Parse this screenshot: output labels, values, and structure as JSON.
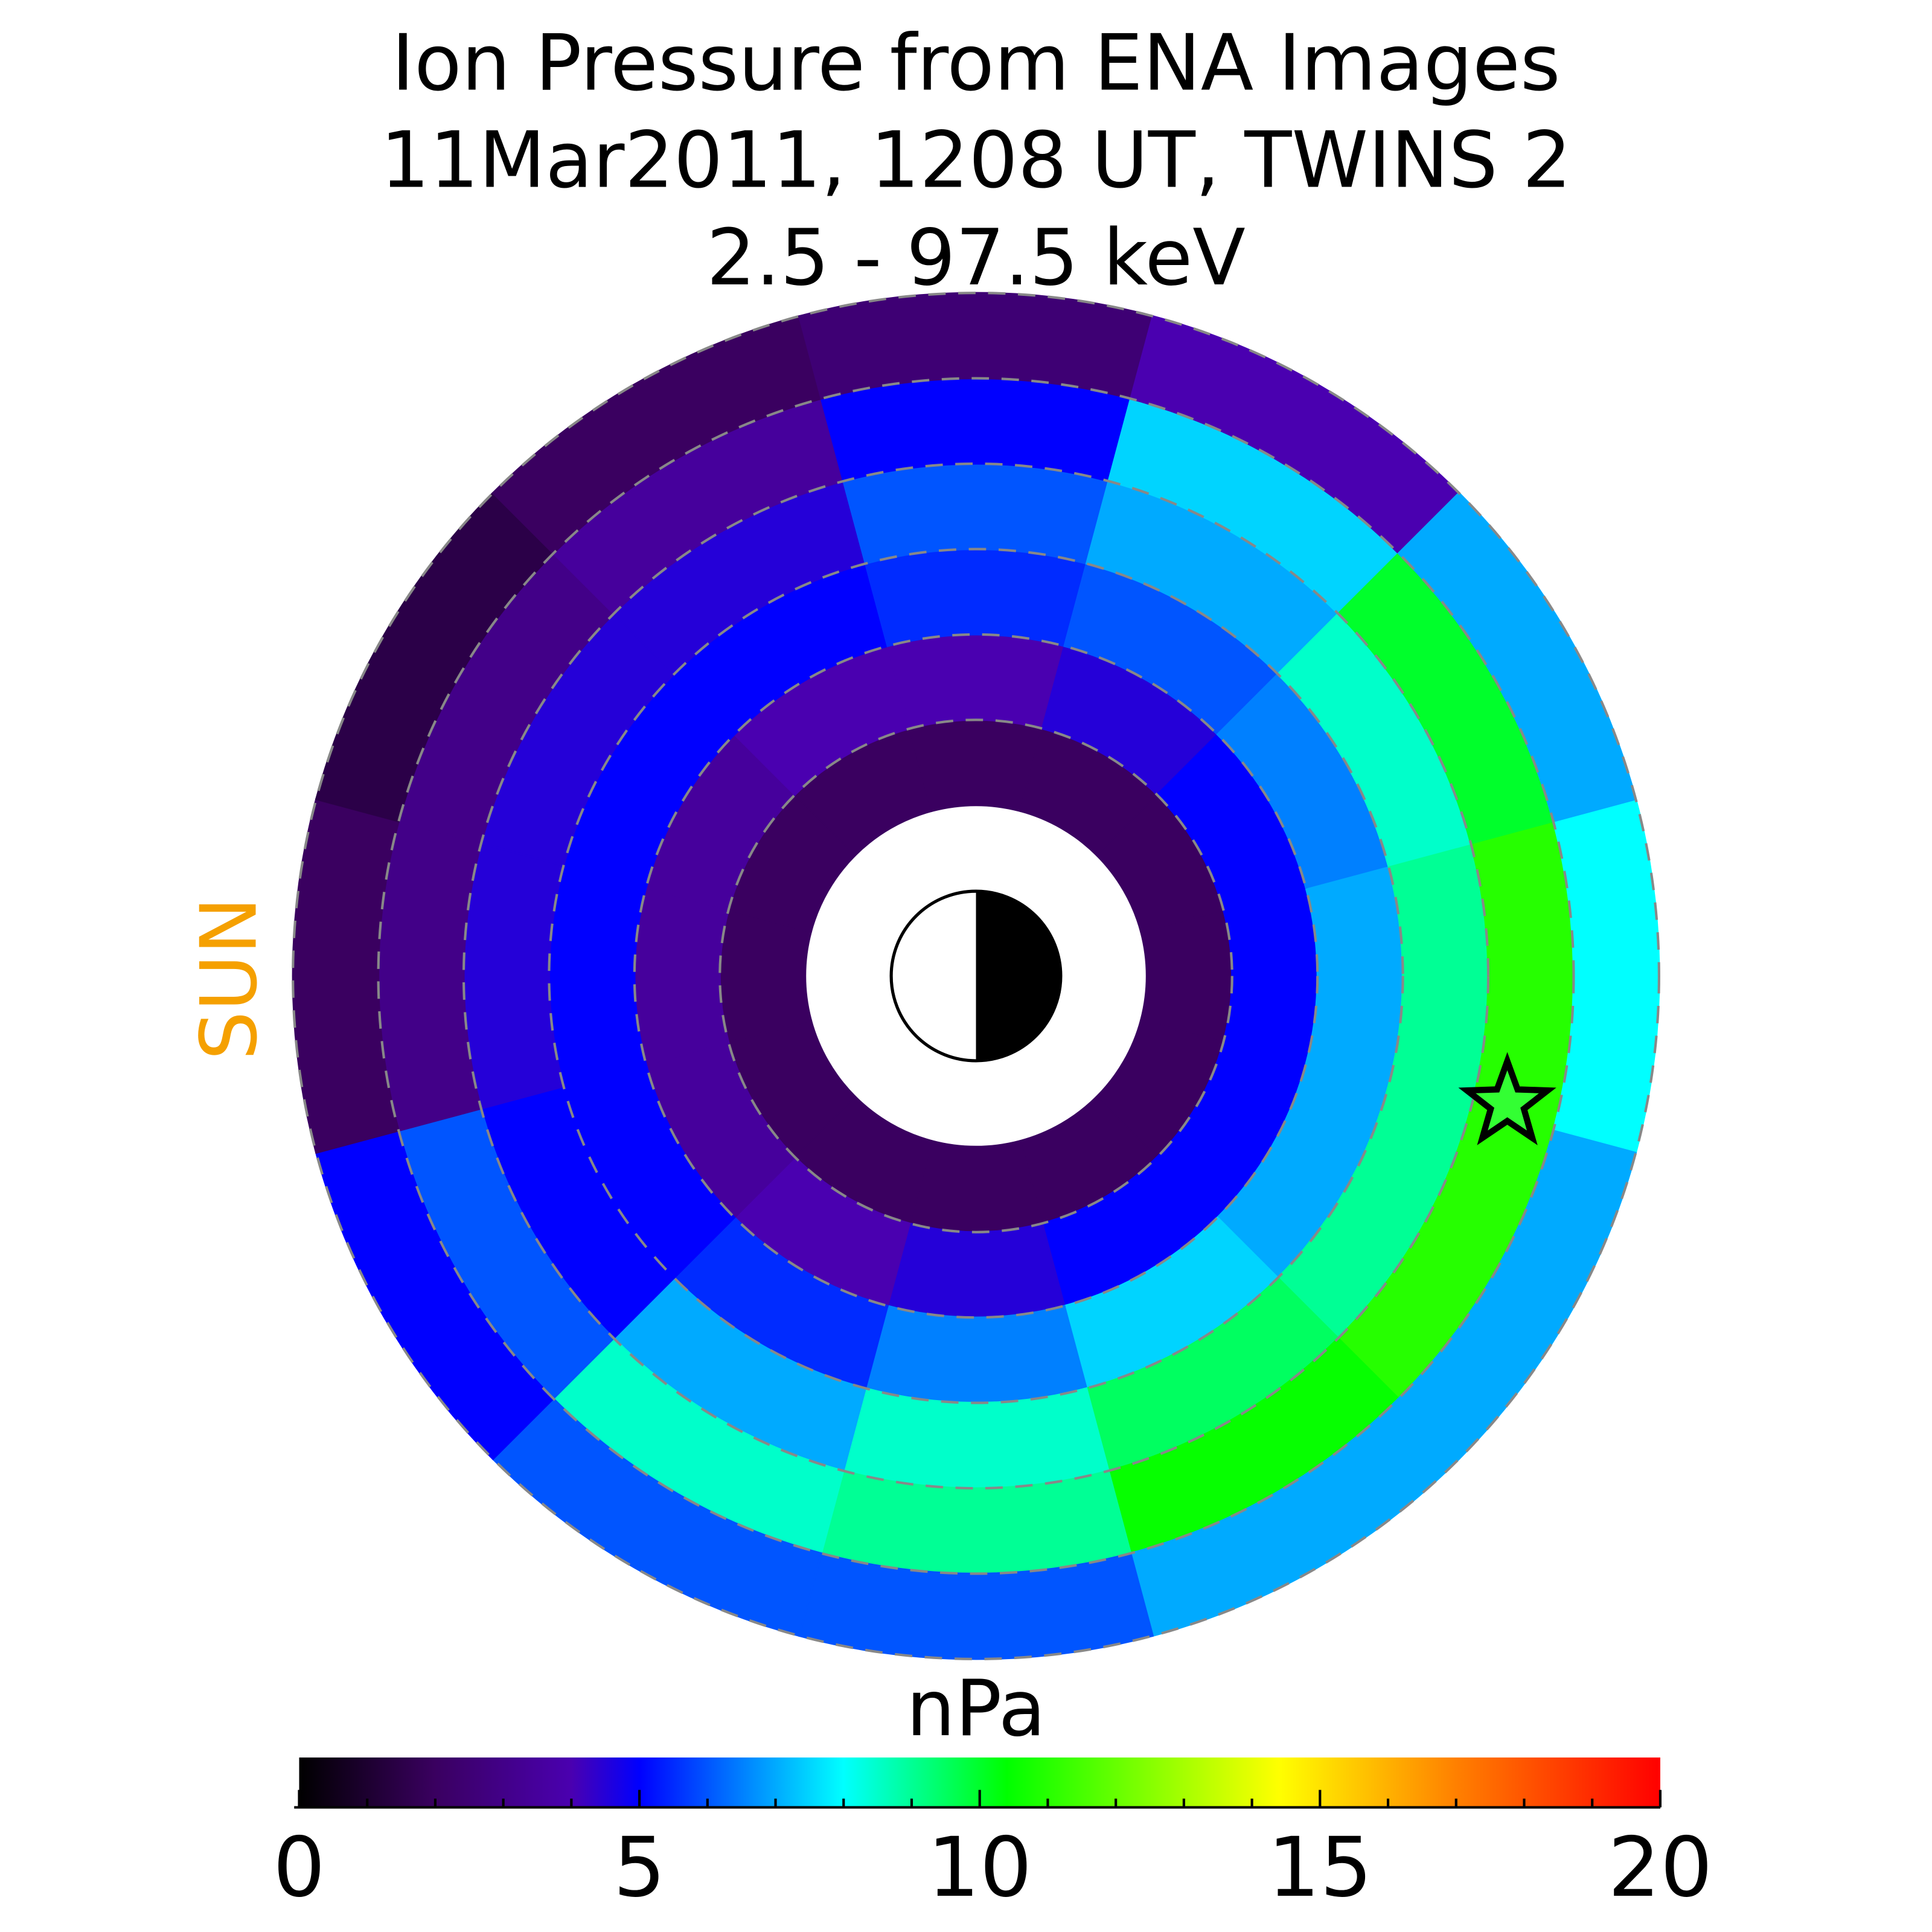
{
  "chart_data": {
    "type": "polar-heatmap",
    "title": [
      "Ion Pressure from  ENA Images",
      "11Mar2011, 1208 UT,  TWINS 2",
      "2.5 - 97.5 keV"
    ],
    "sun_label": "SUN",
    "colorbar_label": "nPa",
    "clim": [
      0,
      20
    ],
    "cticks": [
      0,
      5,
      10,
      15,
      20
    ],
    "mlt": [
      0,
      2,
      4,
      6,
      8,
      10,
      12,
      14,
      16,
      18,
      20,
      22
    ],
    "r_edges": [
      2,
      3,
      4,
      5,
      6,
      7,
      8
    ],
    "grid_r": [
      3,
      4,
      5,
      6,
      7,
      8
    ],
    "values": [
      [
        2,
        5,
        7,
        9,
        11,
        8
      ],
      [
        2,
        5,
        7,
        9,
        11,
        7
      ],
      [
        2,
        5,
        7.5,
        9.5,
        10.5,
        7
      ],
      [
        2,
        4.5,
        6.5,
        8.5,
        9,
        6
      ],
      [
        2,
        4,
        5.5,
        7,
        8.5,
        6
      ],
      [
        2,
        3.5,
        5,
        5,
        6,
        5
      ],
      [
        2,
        3.5,
        5,
        4.5,
        3,
        2
      ],
      [
        2,
        3.5,
        5,
        4.5,
        3,
        1.5
      ],
      [
        2,
        4,
        5,
        4.5,
        3.5,
        2
      ],
      [
        2,
        4,
        5.5,
        6,
        5,
        2.5
      ],
      [
        2,
        4.5,
        6,
        7,
        7.5,
        4
      ],
      [
        2,
        5,
        6.5,
        8.5,
        10,
        7
      ]
    ],
    "marker": {
      "r": 6.4,
      "mlt": 0.9
    }
  }
}
